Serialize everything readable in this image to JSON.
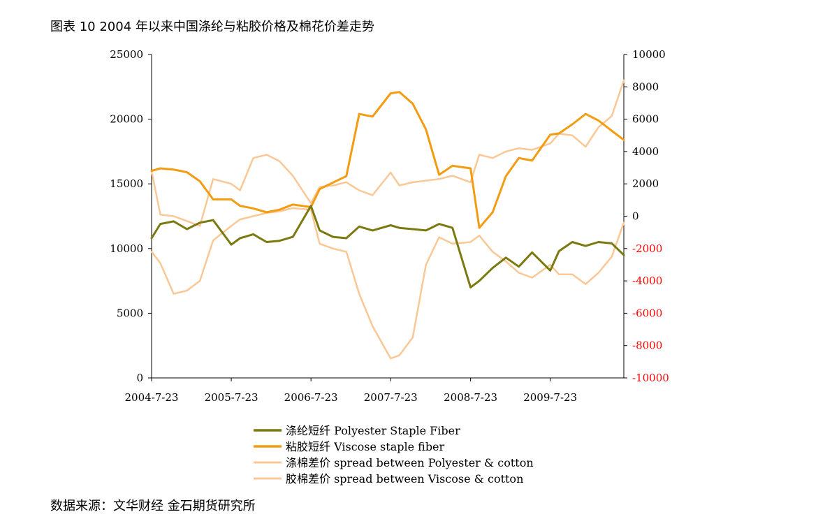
{
  "title": "图表 10 2004 年以来中国涤纶与粘胶价格及棉花价差走势",
  "source": "数据来源：文华财经 金石期货研究所",
  "chart_data": {
    "type": "line",
    "x_ticks": [
      "2004-7-23",
      "2005-7-23",
      "2006-7-23",
      "2007-7-23",
      "2008-7-23",
      "2009-7-23"
    ],
    "x": [
      "2004-07-23",
      "2004-09-01",
      "2004-11-01",
      "2005-01-01",
      "2005-03-01",
      "2005-05-01",
      "2005-07-23",
      "2005-09-01",
      "2005-11-01",
      "2006-01-01",
      "2006-03-01",
      "2006-05-01",
      "2006-07-23",
      "2006-09-01",
      "2006-11-01",
      "2007-01-01",
      "2007-03-01",
      "2007-05-01",
      "2007-07-23",
      "2007-09-01",
      "2007-11-01",
      "2008-01-01",
      "2008-03-01",
      "2008-05-01",
      "2008-07-23",
      "2008-09-01",
      "2008-11-01",
      "2009-01-01",
      "2009-03-01",
      "2009-05-01",
      "2009-07-23",
      "2009-09-01",
      "2009-11-01",
      "2010-01-01",
      "2010-03-01",
      "2010-05-01",
      "2010-06-25"
    ],
    "left_axis": {
      "ylim": [
        0,
        25000
      ],
      "ticks": [
        0,
        5000,
        10000,
        15000,
        20000,
        25000
      ]
    },
    "right_axis": {
      "ylim": [
        -10000,
        10000
      ],
      "ticks": [
        -10000,
        -8000,
        -6000,
        -4000,
        -2000,
        0,
        2000,
        4000,
        6000,
        8000,
        10000
      ],
      "negative_color": "#ff0000"
    },
    "series": [
      {
        "name": "涤纶短纤 Polyester Staple Fiber",
        "axis": "left",
        "color": "#7a7a10",
        "width": 3,
        "values": [
          10800,
          11900,
          12100,
          11500,
          12000,
          12200,
          10300,
          10800,
          11100,
          10500,
          10600,
          10900,
          13300,
          11400,
          10900,
          10800,
          11700,
          11400,
          11800,
          11600,
          11500,
          11400,
          11900,
          11600,
          7000,
          7500,
          8500,
          9300,
          8600,
          9700,
          8300,
          9800,
          10500,
          10200,
          10500,
          10400,
          9500
        ]
      },
      {
        "name": "粘胶短纤 Viscose staple fiber",
        "axis": "left",
        "color": "#f39c12",
        "width": 3,
        "values": [
          16000,
          16200,
          16100,
          15900,
          15200,
          13800,
          13800,
          13300,
          13100,
          12800,
          13000,
          13400,
          13200,
          14600,
          15100,
          15600,
          20400,
          20200,
          22000,
          22100,
          21200,
          19200,
          15700,
          16400,
          16200,
          11600,
          12800,
          15600,
          17000,
          16800,
          18800,
          18900,
          19600,
          20400,
          19900,
          19100,
          18400
        ]
      },
      {
        "name": "涤棉差价 spread between Polyester & cotton",
        "axis": "right",
        "color": "#fac896",
        "width": 2.5,
        "values": [
          -2200,
          -2900,
          -4800,
          -4600,
          -4000,
          -1500,
          -600,
          -200,
          0,
          200,
          300,
          500,
          400,
          -1700,
          -2000,
          -2200,
          -4800,
          -6800,
          -8800,
          -8600,
          -7500,
          -3000,
          -1300,
          -1700,
          -1600,
          -1200,
          -2200,
          -2800,
          -3500,
          -3800,
          -3000,
          -3600,
          -3600,
          -4200,
          -3500,
          -2500,
          -400
        ]
      },
      {
        "name": "胶棉差价 spread between Viscose & cotton",
        "axis": "right",
        "color": "#fac896",
        "width": 2.5,
        "values": [
          2800,
          100,
          0,
          -300,
          -600,
          2300,
          2000,
          1600,
          3600,
          3800,
          3400,
          2500,
          800,
          1800,
          1900,
          2100,
          1600,
          1300,
          2700,
          1900,
          2100,
          2200,
          2300,
          2500,
          2100,
          3800,
          3600,
          4000,
          4200,
          4100,
          4500,
          5100,
          5000,
          4300,
          5500,
          6200,
          8400
        ]
      }
    ]
  }
}
